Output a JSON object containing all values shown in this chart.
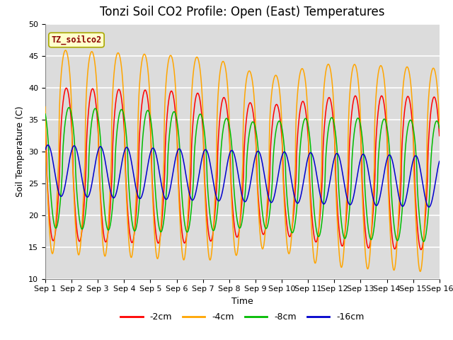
{
  "title": "Tonzi Soil CO2 Profile: Open (East) Temperatures",
  "xlabel": "Time",
  "ylabel": "Soil Temperature (C)",
  "ylim": [
    10,
    50
  ],
  "xlim_days": 15,
  "background_color": "#dcdcdc",
  "grid_color": "white",
  "series": [
    {
      "label": "-2cm",
      "color": "#ff0000"
    },
    {
      "label": "-4cm",
      "color": "#ffa500"
    },
    {
      "label": "-8cm",
      "color": "#00bb00"
    },
    {
      "label": "-16cm",
      "color": "#0000cc"
    }
  ],
  "xtick_labels": [
    "Sep 1",
    "Sep 2",
    "Sep 3",
    "Sep 4",
    "Sep 5",
    "Sep 6",
    "Sep 7",
    "Sep 8",
    "Sep 9",
    "Sep 10",
    "Sep 11",
    "Sep 12",
    "Sep 13",
    "Sep 14",
    "Sep 15",
    "Sep 16"
  ],
  "legend_box_label": "TZ_soilco2",
  "legend_box_color": "#ffffcc",
  "legend_box_edge_color": "#aaa800",
  "title_fontsize": 12,
  "axis_label_fontsize": 9,
  "tick_fontsize": 8
}
